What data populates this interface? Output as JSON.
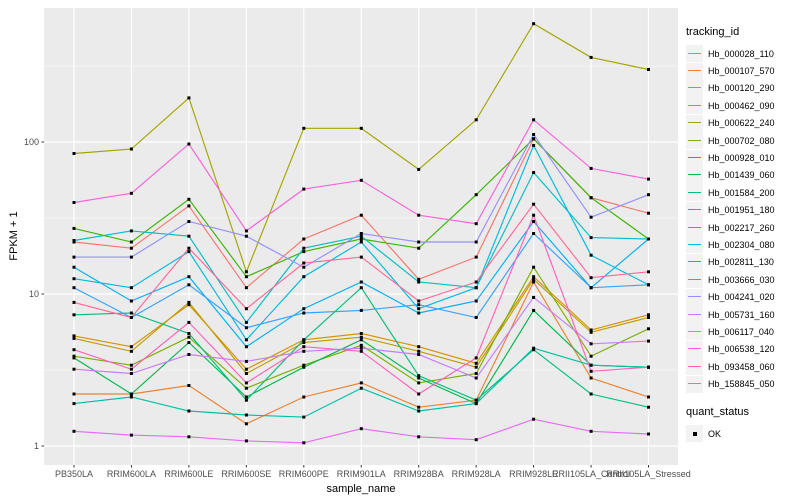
{
  "panel": {
    "bg": "#EBEBEB",
    "grid": "#FFFFFF",
    "tick_color": "#333333",
    "tick_label_color": "#4D4D4D"
  },
  "legend": {
    "tracking_title": "tracking_id",
    "quant_title": "quant_status",
    "quant_items": [
      "OK"
    ]
  },
  "chart_data": {
    "type": "line",
    "title": "",
    "xlabel": "sample_name",
    "ylabel": "FPKM + 1",
    "y_scale": "log10",
    "y_ticks": [
      1,
      10,
      100
    ],
    "y_minor_ticks": [
      3.162,
      31.623,
      316.228
    ],
    "ylim": [
      0.75,
      800
    ],
    "grid": "on",
    "legend_position": "right",
    "point_marker": {
      "shape": "square",
      "color": "#000000",
      "meaning": "quant_status OK"
    },
    "categories": [
      "PB350LA",
      "RRIM600LA",
      "RRIM600LE",
      "RRIM600SE",
      "RRIM600PE",
      "RRIM901LA",
      "RRIM928BA",
      "RRIM928LA",
      "RRIM928LE",
      "RRII105LA_Control",
      "RRII105LA_Stressed"
    ],
    "series": [
      {
        "name": "Hb_000028_110",
        "color": "#F8766D",
        "values": [
          22,
          20,
          38,
          11,
          23,
          33,
          12.5,
          17.5,
          105,
          43,
          34
        ]
      },
      {
        "name": "Hb_000107_570",
        "color": "#EA8331",
        "values": [
          2.2,
          2.2,
          2.5,
          1.4,
          2.1,
          2.6,
          1.8,
          2.0,
          12,
          2.8,
          2.1
        ]
      },
      {
        "name": "Hb_000120_290",
        "color": "#D89000",
        "values": [
          5.3,
          4.5,
          8.5,
          3.2,
          5.0,
          5.5,
          4.5,
          3.5,
          13,
          5.8,
          7.3
        ]
      },
      {
        "name": "Hb_000462_090",
        "color": "#C09B00",
        "values": [
          5.1,
          4.2,
          8.8,
          3.0,
          4.8,
          5.2,
          4.2,
          3.3,
          12.5,
          5.6,
          7.0
        ]
      },
      {
        "name": "Hb_000622_240",
        "color": "#A3A500",
        "values": [
          84,
          90,
          195,
          14,
          123,
          123,
          66,
          140,
          600,
          360,
          300
        ]
      },
      {
        "name": "Hb_000702_080",
        "color": "#7CAE00",
        "values": [
          3.9,
          3.4,
          5.2,
          2.4,
          3.4,
          4.6,
          2.6,
          3.0,
          15,
          3.9,
          5.9
        ]
      },
      {
        "name": "Hb_000928_010",
        "color": "#39B600",
        "values": [
          27,
          22,
          42,
          13,
          19,
          23,
          20,
          45,
          105,
          43,
          23
        ]
      },
      {
        "name": "Hb_001439_060",
        "color": "#00BB4E",
        "values": [
          3.8,
          2.2,
          4.8,
          2.1,
          3.3,
          5.0,
          2.8,
          1.9,
          7.8,
          3.4,
          3.3
        ]
      },
      {
        "name": "Hb_001584_200",
        "color": "#00BF7D",
        "values": [
          7.3,
          7.5,
          5.5,
          2.0,
          5.0,
          11,
          2.9,
          2.0,
          4.3,
          2.2,
          1.8
        ]
      },
      {
        "name": "Hb_001951_180",
        "color": "#00C1A3",
        "values": [
          1.9,
          2.1,
          1.7,
          1.6,
          1.55,
          2.4,
          1.7,
          1.9,
          4.4,
          3.4,
          3.3
        ]
      },
      {
        "name": "Hb_002217_260",
        "color": "#00BFC4",
        "values": [
          22.5,
          26,
          24,
          6.5,
          20,
          24,
          12,
          11,
          63,
          23.5,
          23
        ]
      },
      {
        "name": "Hb_002304_080",
        "color": "#00BAE0",
        "values": [
          12.6,
          11,
          19,
          5.0,
          13,
          22,
          8,
          11,
          95,
          18,
          11.5
        ]
      },
      {
        "name": "Hb_002811_130",
        "color": "#00B0F6",
        "values": [
          15,
          9,
          13,
          4.5,
          8,
          12,
          7.5,
          9,
          30,
          11,
          23
        ]
      },
      {
        "name": "Hb_003666_030",
        "color": "#35A2FF",
        "values": [
          11,
          7,
          11.5,
          6.0,
          7.5,
          7.8,
          8.5,
          7.0,
          25,
          11,
          11.5
        ]
      },
      {
        "name": "Hb_004241_020",
        "color": "#9590FF",
        "values": [
          17.5,
          17.5,
          30,
          24,
          15,
          25,
          22,
          22,
          112,
          32,
          45
        ]
      },
      {
        "name": "Hb_005731_160",
        "color": "#C77CFF",
        "values": [
          3.2,
          3.0,
          4.0,
          3.6,
          4.2,
          4.4,
          4.0,
          2.8,
          9.5,
          4.7,
          4.9
        ]
      },
      {
        "name": "Hb_006117_040",
        "color": "#E76BF3",
        "values": [
          1.25,
          1.18,
          1.15,
          1.08,
          1.05,
          1.3,
          1.15,
          1.1,
          1.5,
          1.25,
          1.2
        ]
      },
      {
        "name": "Hb_006538_120",
        "color": "#FA62DB",
        "values": [
          40,
          46,
          97,
          26,
          49,
          56,
          33,
          29,
          140,
          67,
          57
        ]
      },
      {
        "name": "Hb_093458_060",
        "color": "#FF62BC",
        "values": [
          4.3,
          3.2,
          6.5,
          2.6,
          4.5,
          4.2,
          2.2,
          3.8,
          33,
          3.1,
          3.3
        ]
      },
      {
        "name": "Hb_158845_050",
        "color": "#FF6A98",
        "values": [
          8.8,
          7.0,
          20,
          8.0,
          16,
          17.5,
          9,
          12,
          39,
          12.8,
          14
        ]
      }
    ]
  }
}
